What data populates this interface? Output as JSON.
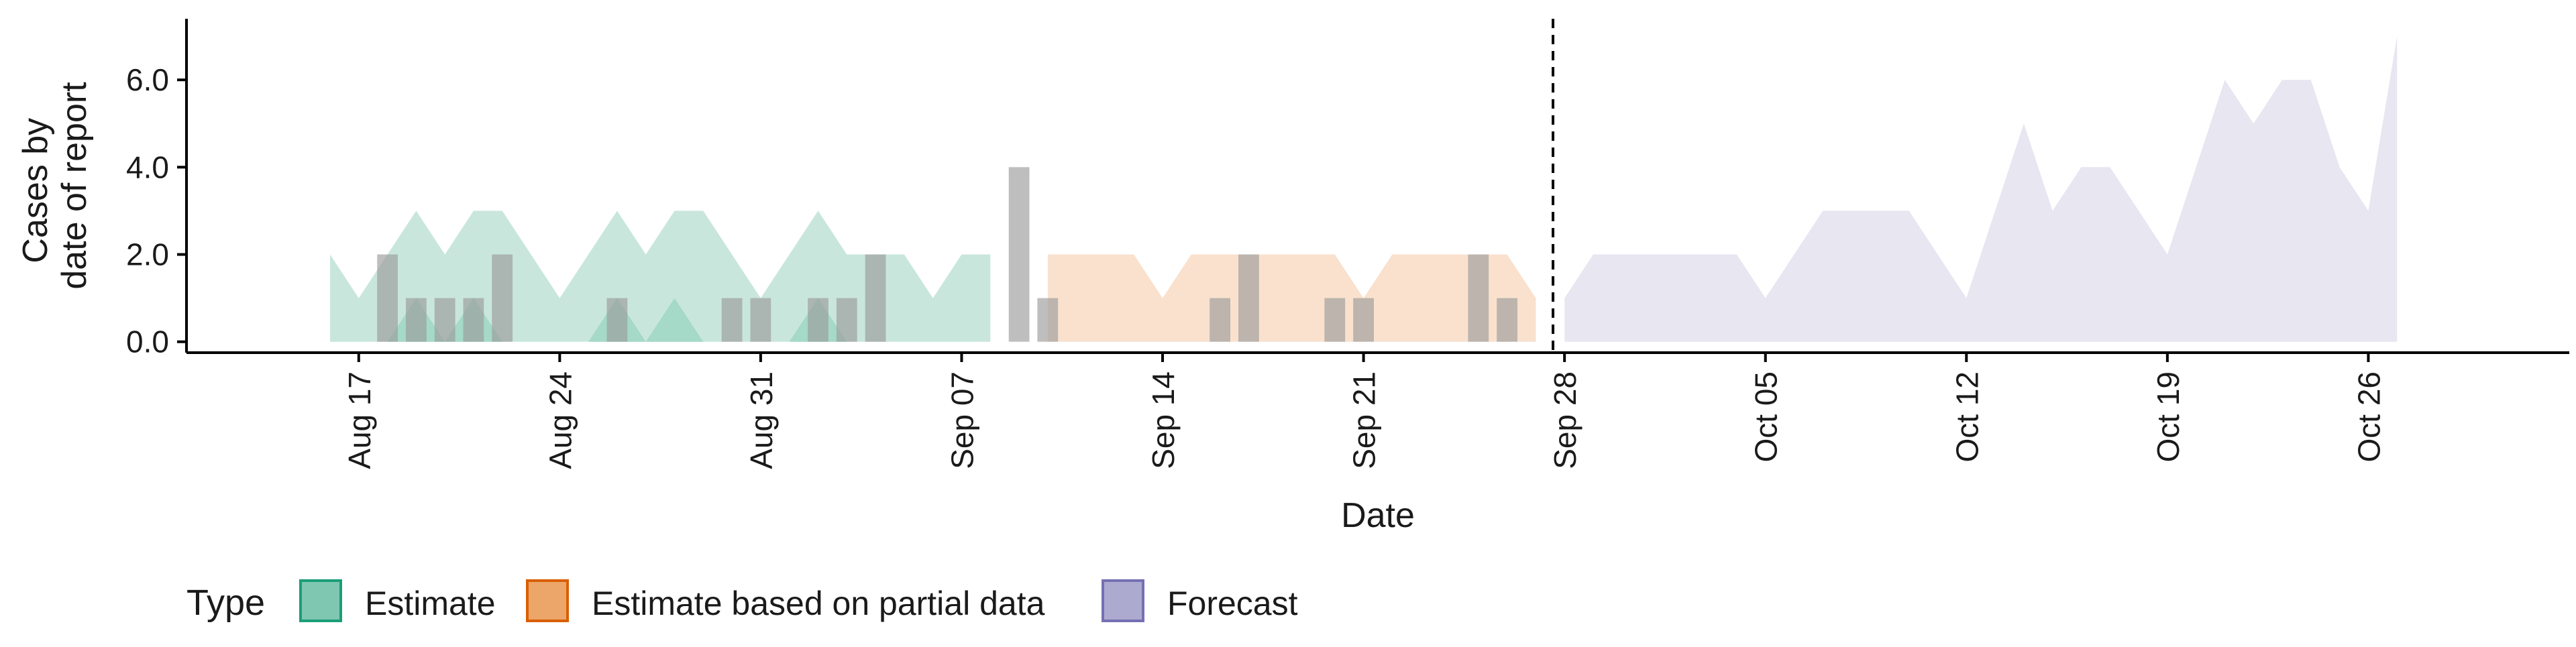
{
  "chart_data": {
    "type": "area",
    "xlabel": "Date",
    "ylabel_lines": [
      "Cases by",
      "date of report"
    ],
    "x_ticks": [
      "Aug 17",
      "Aug 24",
      "Aug 31",
      "Sep 07",
      "Sep 14",
      "Sep 21",
      "Sep 28",
      "Oct 05",
      "Oct 12",
      "Oct 19",
      "Oct 26"
    ],
    "x_tick_dates": [
      "2020-08-17",
      "2020-08-24",
      "2020-08-31",
      "2020-09-07",
      "2020-09-14",
      "2020-09-21",
      "2020-09-28",
      "2020-10-05",
      "2020-10-12",
      "2020-10-19",
      "2020-10-26"
    ],
    "y_ticks": [
      "0.0",
      "2.0",
      "4.0",
      "6.0"
    ],
    "y_tick_values": [
      0,
      2,
      4,
      6
    ],
    "xlim": [
      "2020-08-11",
      "2020-11-02"
    ],
    "ylim": [
      -0.25,
      7.4
    ],
    "forecast_start": "2020-09-27",
    "grid": false,
    "legend": {
      "title": "Type",
      "position": "bottom-left",
      "items": [
        {
          "label": "Estimate",
          "fill": "#7fc7b1",
          "stroke": "#1b9e77"
        },
        {
          "label": "Estimate based on partial data",
          "fill": "#eca66a",
          "stroke": "#d95f02"
        },
        {
          "label": "Forecast",
          "fill": "#adaad0",
          "stroke": "#7570b3"
        }
      ]
    },
    "series": [
      {
        "type": "Estimate",
        "color": "#bfe2d7",
        "points": [
          {
            "date": "2020-08-16",
            "lower": 0,
            "upper": 2
          },
          {
            "date": "2020-08-17",
            "lower": 0,
            "upper": 1
          },
          {
            "date": "2020-08-18",
            "lower": 0,
            "upper": 2
          },
          {
            "date": "2020-08-19",
            "lower": 0,
            "upper": 3
          },
          {
            "date": "2020-08-20",
            "lower": 0,
            "upper": 2
          },
          {
            "date": "2020-08-21",
            "lower": 0,
            "upper": 3
          },
          {
            "date": "2020-08-22",
            "lower": 0,
            "upper": 3
          },
          {
            "date": "2020-08-23",
            "lower": 0,
            "upper": 2
          },
          {
            "date": "2020-08-24",
            "lower": 0,
            "upper": 1
          },
          {
            "date": "2020-08-25",
            "lower": 0,
            "upper": 2
          },
          {
            "date": "2020-08-26",
            "lower": 0,
            "upper": 3
          },
          {
            "date": "2020-08-27",
            "lower": 0,
            "upper": 2
          },
          {
            "date": "2020-08-28",
            "lower": 0,
            "upper": 3
          },
          {
            "date": "2020-08-29",
            "lower": 0,
            "upper": 3
          },
          {
            "date": "2020-08-30",
            "lower": 0,
            "upper": 2
          },
          {
            "date": "2020-08-31",
            "lower": 0,
            "upper": 1
          },
          {
            "date": "2020-09-01",
            "lower": 0,
            "upper": 2
          },
          {
            "date": "2020-09-02",
            "lower": 0,
            "upper": 3
          },
          {
            "date": "2020-09-03",
            "lower": 0,
            "upper": 2
          },
          {
            "date": "2020-09-04",
            "lower": 0,
            "upper": 2
          },
          {
            "date": "2020-09-05",
            "lower": 0,
            "upper": 2
          },
          {
            "date": "2020-09-06",
            "lower": 0,
            "upper": 1
          },
          {
            "date": "2020-09-07",
            "lower": 0,
            "upper": 2
          },
          {
            "date": "2020-09-08",
            "lower": 0,
            "upper": 2
          }
        ]
      },
      {
        "type": "Estimate",
        "color": "#9fd6c4",
        "points": [
          {
            "date": "2020-08-18",
            "lower": 0,
            "upper": 0
          },
          {
            "date": "2020-08-19",
            "lower": 0,
            "upper": 1
          },
          {
            "date": "2020-08-20",
            "lower": 0,
            "upper": 0
          },
          {
            "date": "2020-08-21",
            "lower": 0,
            "upper": 1
          },
          {
            "date": "2020-08-22",
            "lower": 0,
            "upper": 0
          },
          {
            "date": "2020-08-25",
            "lower": 0,
            "upper": 0
          },
          {
            "date": "2020-08-26",
            "lower": 0,
            "upper": 1
          },
          {
            "date": "2020-08-27",
            "lower": 0,
            "upper": 0
          },
          {
            "date": "2020-08-28",
            "lower": 0,
            "upper": 1
          },
          {
            "date": "2020-08-29",
            "lower": 0,
            "upper": 0
          },
          {
            "date": "2020-09-01",
            "lower": 0,
            "upper": 0
          },
          {
            "date": "2020-09-02",
            "lower": 0,
            "upper": 1
          },
          {
            "date": "2020-09-03",
            "lower": 0,
            "upper": 0
          }
        ]
      },
      {
        "type": "Estimate based on partial data",
        "color": "#f8dcc6",
        "points": [
          {
            "date": "2020-09-10",
            "lower": 0,
            "upper": 2
          },
          {
            "date": "2020-09-11",
            "lower": 0,
            "upper": 2
          },
          {
            "date": "2020-09-12",
            "lower": 0,
            "upper": 2
          },
          {
            "date": "2020-09-13",
            "lower": 0,
            "upper": 2
          },
          {
            "date": "2020-09-14",
            "lower": 0,
            "upper": 1
          },
          {
            "date": "2020-09-15",
            "lower": 0,
            "upper": 2
          },
          {
            "date": "2020-09-16",
            "lower": 0,
            "upper": 2
          },
          {
            "date": "2020-09-17",
            "lower": 0,
            "upper": 2
          },
          {
            "date": "2020-09-18",
            "lower": 0,
            "upper": 2
          },
          {
            "date": "2020-09-19",
            "lower": 0,
            "upper": 2
          },
          {
            "date": "2020-09-20",
            "lower": 0,
            "upper": 2
          },
          {
            "date": "2020-09-21",
            "lower": 0,
            "upper": 1
          },
          {
            "date": "2020-09-22",
            "lower": 0,
            "upper": 2
          },
          {
            "date": "2020-09-23",
            "lower": 0,
            "upper": 2
          },
          {
            "date": "2020-09-24",
            "lower": 0,
            "upper": 2
          },
          {
            "date": "2020-09-25",
            "lower": 0,
            "upper": 2
          },
          {
            "date": "2020-09-26",
            "lower": 0,
            "upper": 2
          },
          {
            "date": "2020-09-27",
            "lower": 0,
            "upper": 1
          }
        ]
      },
      {
        "type": "Forecast",
        "color": "#e3e2ef",
        "points": [
          {
            "date": "2020-09-28",
            "lower": 0,
            "upper": 1
          },
          {
            "date": "2020-09-29",
            "lower": 0,
            "upper": 2
          },
          {
            "date": "2020-09-30",
            "lower": 0,
            "upper": 2
          },
          {
            "date": "2020-10-01",
            "lower": 0,
            "upper": 2
          },
          {
            "date": "2020-10-02",
            "lower": 0,
            "upper": 2
          },
          {
            "date": "2020-10-03",
            "lower": 0,
            "upper": 2
          },
          {
            "date": "2020-10-04",
            "lower": 0,
            "upper": 2
          },
          {
            "date": "2020-10-05",
            "lower": 0,
            "upper": 1
          },
          {
            "date": "2020-10-06",
            "lower": 0,
            "upper": 2
          },
          {
            "date": "2020-10-07",
            "lower": 0,
            "upper": 3
          },
          {
            "date": "2020-10-08",
            "lower": 0,
            "upper": 3
          },
          {
            "date": "2020-10-09",
            "lower": 0,
            "upper": 3
          },
          {
            "date": "2020-10-10",
            "lower": 0,
            "upper": 3
          },
          {
            "date": "2020-10-11",
            "lower": 0,
            "upper": 2
          },
          {
            "date": "2020-10-12",
            "lower": 0,
            "upper": 1
          },
          {
            "date": "2020-10-13",
            "lower": 0,
            "upper": 3
          },
          {
            "date": "2020-10-14",
            "lower": 0,
            "upper": 5
          },
          {
            "date": "2020-10-15",
            "lower": 0,
            "upper": 3
          },
          {
            "date": "2020-10-16",
            "lower": 0,
            "upper": 4
          },
          {
            "date": "2020-10-17",
            "lower": 0,
            "upper": 4
          },
          {
            "date": "2020-10-18",
            "lower": 0,
            "upper": 3
          },
          {
            "date": "2020-10-19",
            "lower": 0,
            "upper": 2
          },
          {
            "date": "2020-10-20",
            "lower": 0,
            "upper": 4
          },
          {
            "date": "2020-10-21",
            "lower": 0,
            "upper": 6
          },
          {
            "date": "2020-10-22",
            "lower": 0,
            "upper": 5
          },
          {
            "date": "2020-10-23",
            "lower": 0,
            "upper": 6
          },
          {
            "date": "2020-10-24",
            "lower": 0,
            "upper": 6
          },
          {
            "date": "2020-10-25",
            "lower": 0,
            "upper": 4
          },
          {
            "date": "2020-10-26",
            "lower": 0,
            "upper": 3
          },
          {
            "date": "2020-10-27",
            "lower": 0,
            "upper": 7
          }
        ]
      }
    ],
    "observed_bars": {
      "color": "#9b9b9b",
      "points": [
        {
          "date": "2020-08-18",
          "value": 2
        },
        {
          "date": "2020-08-19",
          "value": 1
        },
        {
          "date": "2020-08-20",
          "value": 1
        },
        {
          "date": "2020-08-21",
          "value": 1
        },
        {
          "date": "2020-08-22",
          "value": 2
        },
        {
          "date": "2020-08-26",
          "value": 1
        },
        {
          "date": "2020-08-30",
          "value": 1
        },
        {
          "date": "2020-08-31",
          "value": 1
        },
        {
          "date": "2020-09-02",
          "value": 1
        },
        {
          "date": "2020-09-03",
          "value": 1
        },
        {
          "date": "2020-09-04",
          "value": 2
        },
        {
          "date": "2020-09-09",
          "value": 4
        },
        {
          "date": "2020-09-10",
          "value": 1
        },
        {
          "date": "2020-09-16",
          "value": 1
        },
        {
          "date": "2020-09-17",
          "value": 2
        },
        {
          "date": "2020-09-20",
          "value": 1
        },
        {
          "date": "2020-09-21",
          "value": 1
        },
        {
          "date": "2020-09-25",
          "value": 2
        },
        {
          "date": "2020-09-26",
          "value": 1
        }
      ]
    }
  }
}
